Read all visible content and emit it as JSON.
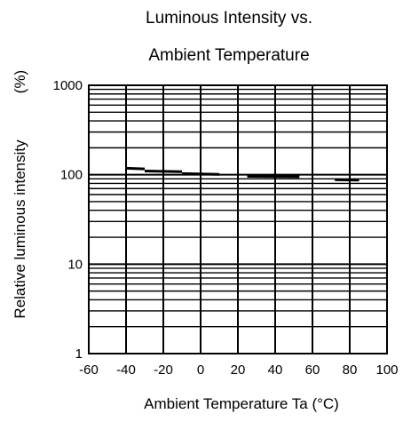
{
  "chart_data": {
    "type": "line",
    "title": [
      "Luminous Intensity vs.",
      "Ambient Temperature"
    ],
    "xlabel": "Ambient Temperature Ta (°C)",
    "ylabel": "Relative luminous intensity",
    "ylabel_unit": "(%)",
    "xlim": [
      -60,
      100
    ],
    "ylim": [
      1,
      1000
    ],
    "yscale": "log",
    "grid": true,
    "x_ticks": [
      -60,
      -40,
      -20,
      0,
      20,
      40,
      60,
      80,
      100
    ],
    "x_tick_labels": [
      "-60",
      "-40",
      "-20",
      "0",
      "20",
      "40",
      "60",
      "80",
      "100"
    ],
    "y_ticks": [
      1,
      10,
      100,
      1000
    ],
    "y_tick_labels": [
      "1",
      "10",
      "100",
      "1000"
    ],
    "series": [
      {
        "color": "#000000",
        "segments": [
          {
            "x": [
              -40,
              -30
            ],
            "y": [
              118,
              116
            ]
          },
          {
            "x": [
              -30,
              -10
            ],
            "y": [
              110,
              108
            ]
          },
          {
            "x": [
              -10,
              10
            ],
            "y": [
              103,
              101
            ]
          },
          {
            "x": [
              25,
              53
            ],
            "y": [
              96,
              95
            ]
          },
          {
            "x": [
              72,
              85
            ],
            "y": [
              88,
              87
            ]
          }
        ]
      }
    ]
  }
}
